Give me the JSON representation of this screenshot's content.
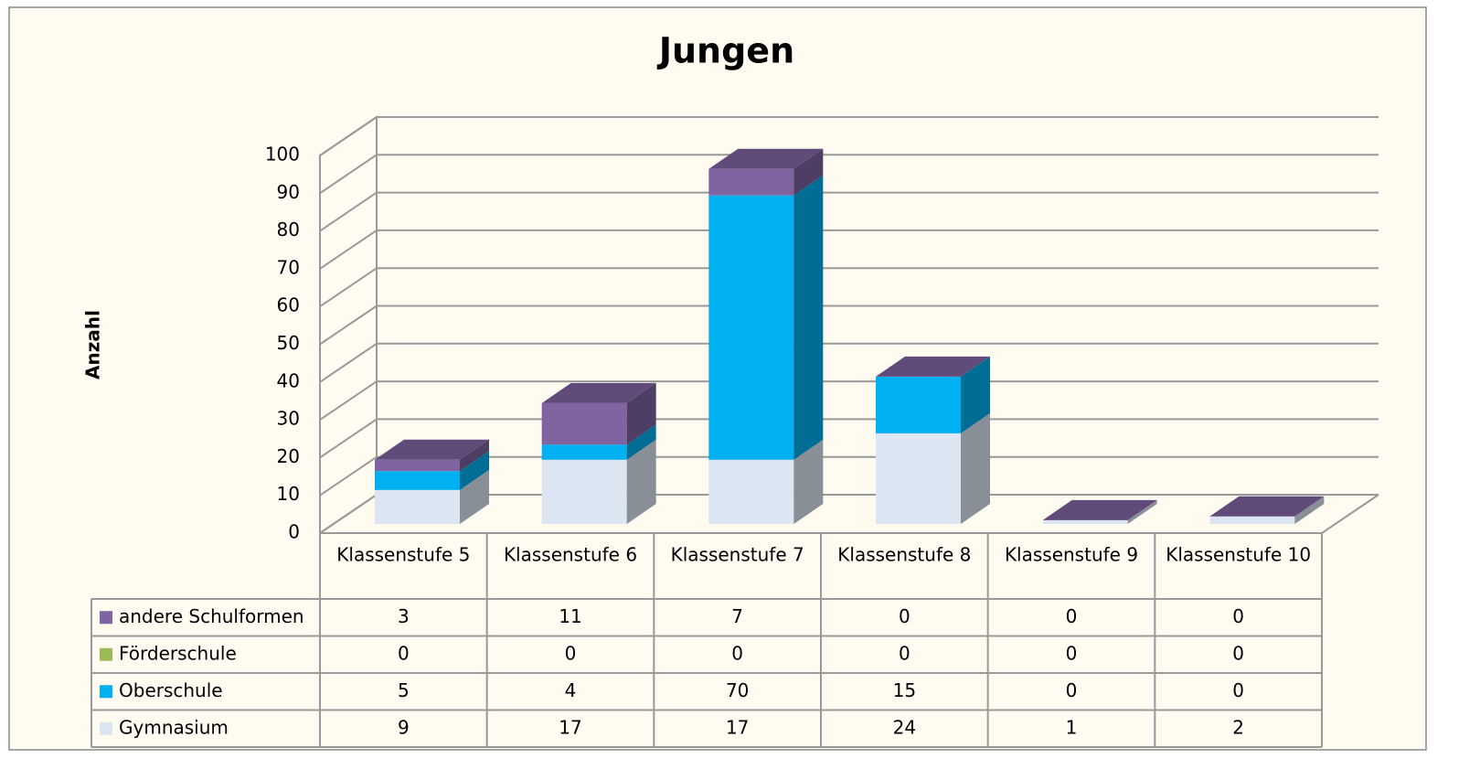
{
  "chart_data": {
    "type": "bar3d_stacked",
    "title": "Jungen",
    "y_label": "Anzahl",
    "categories": [
      "Klassenstufe 5",
      "Klassenstufe 6",
      "Klassenstufe 7",
      "Klassenstufe 8",
      "Klassenstufe 9",
      "Klassenstufe 10"
    ],
    "series": [
      {
        "name": "andere Schulformen",
        "color": "#8064a2",
        "values": [
          3,
          11,
          7,
          0,
          0,
          0
        ]
      },
      {
        "name": "Förderschule",
        "color": "#9bbb59",
        "values": [
          0,
          0,
          0,
          0,
          0,
          0
        ]
      },
      {
        "name": "Oberschule",
        "color": "#00b0f0",
        "values": [
          5,
          4,
          70,
          15,
          0,
          0
        ]
      },
      {
        "name": "Gymnasium",
        "color": "#dce6f2",
        "values": [
          9,
          17,
          17,
          24,
          1,
          2
        ]
      }
    ],
    "ylim": [
      0,
      100
    ],
    "yticks": [
      0,
      10,
      20,
      30,
      40,
      50,
      60,
      70,
      80,
      90,
      100
    ],
    "grid": true,
    "data_table": true
  }
}
